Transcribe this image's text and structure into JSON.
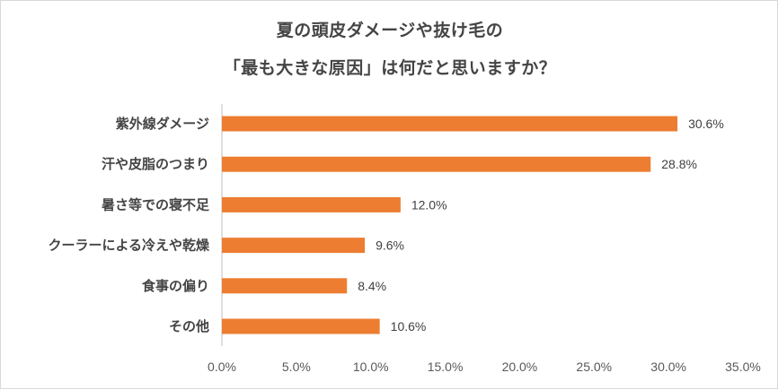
{
  "chart_data": {
    "type": "bar",
    "orientation": "horizontal",
    "title": [
      "夏の頭皮ダメージや抜け毛の",
      "「最も大きな原因」は何だと思いますか？"
    ],
    "categories": [
      "紫外線ダメージ",
      "汗や皮脂のつまり",
      "暑さ等での寝不足",
      "クーラーによる冷えや乾燥",
      "食事の偏り",
      "その他"
    ],
    "values": [
      30.6,
      28.8,
      12.0,
      9.6,
      8.4,
      10.6
    ],
    "value_labels": [
      "30.6%",
      "28.8%",
      "12.0%",
      "9.6%",
      "8.4%",
      "10.6%"
    ],
    "xlim": [
      0,
      35
    ],
    "x_ticks": [
      0,
      5,
      10,
      15,
      20,
      25,
      30,
      35
    ],
    "x_tick_labels": [
      "0.0%",
      "5.0%",
      "10.0%",
      "15.0%",
      "20.0%",
      "25.0%",
      "30.0%",
      "35.0%"
    ],
    "xlabel": "",
    "ylabel": "",
    "grid": false,
    "legend": "none",
    "colors": {
      "bar": "#ed7d31",
      "axis": "#bfbfbf",
      "text": "#444444"
    }
  }
}
